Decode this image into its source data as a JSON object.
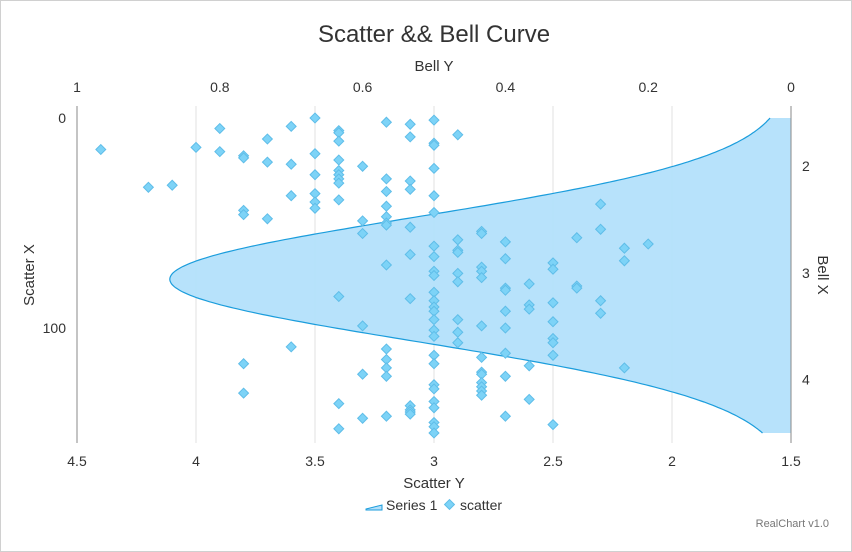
{
  "chart_data": {
    "type": "scatter",
    "title": "Scatter && Bell Curve",
    "x_axis": {
      "title": "Scatter Y",
      "range": [
        4.5,
        1.5
      ],
      "ticks": [
        "4.5",
        "4",
        "3.5",
        "3",
        "2.5",
        "2",
        "1.5"
      ],
      "tick_values": [
        4.5,
        4,
        3.5,
        3,
        2.5,
        2,
        1.5
      ]
    },
    "y_axis": {
      "title": "Scatter X",
      "range": [
        0,
        150
      ],
      "ticks": [
        "0",
        "100"
      ],
      "tick_values": [
        0,
        100
      ]
    },
    "x2_axis": {
      "title": "Bell Y",
      "range": [
        1,
        0
      ],
      "ticks": [
        "1",
        "0.8",
        "0.6",
        "0.4",
        "0.2",
        "0"
      ],
      "tick_values": [
        1,
        0.8,
        0.6,
        0.4,
        0.2,
        0
      ]
    },
    "y2_axis": {
      "title": "Bell X",
      "ticks": [
        "2",
        "3",
        "4"
      ],
      "tick_values": [
        2,
        3,
        4
      ],
      "range": [
        1.55,
        4.5
      ]
    },
    "grid": "vertical",
    "legend_position": "bottom",
    "series": [
      {
        "name": "Series 1",
        "type": "area",
        "color": "#1b9ddc",
        "fill": "#b3e0fb",
        "mean": 3.06,
        "sigma": 0.58,
        "peak": 0.87
      },
      {
        "name": "scatter",
        "type": "scatter",
        "color": "#7dd3f7",
        "stroke": "#5fbde8",
        "points": [
          [
            4.4,
            15
          ],
          [
            4.2,
            33
          ],
          [
            4.1,
            32
          ],
          [
            4,
            14
          ],
          [
            3.9,
            5
          ],
          [
            3.9,
            16
          ],
          [
            3.8,
            18
          ],
          [
            3.8,
            19
          ],
          [
            3.8,
            44
          ],
          [
            3.8,
            46
          ],
          [
            3.8,
            117
          ],
          [
            3.8,
            131
          ],
          [
            3.7,
            10
          ],
          [
            3.7,
            21
          ],
          [
            3.7,
            48
          ],
          [
            3.6,
            4
          ],
          [
            3.6,
            22
          ],
          [
            3.6,
            37
          ],
          [
            3.6,
            109
          ],
          [
            3.5,
            0
          ],
          [
            3.5,
            17
          ],
          [
            3.5,
            27
          ],
          [
            3.5,
            36
          ],
          [
            3.5,
            40
          ],
          [
            3.5,
            43
          ],
          [
            3.4,
            6
          ],
          [
            3.4,
            7
          ],
          [
            3.4,
            11
          ],
          [
            3.4,
            20
          ],
          [
            3.4,
            25
          ],
          [
            3.4,
            27
          ],
          [
            3.4,
            29
          ],
          [
            3.4,
            31
          ],
          [
            3.4,
            39
          ],
          [
            3.4,
            85
          ],
          [
            3.4,
            136
          ],
          [
            3.4,
            148
          ],
          [
            3.3,
            23
          ],
          [
            3.3,
            49
          ],
          [
            3.3,
            55
          ],
          [
            3.3,
            99
          ],
          [
            3.3,
            122
          ],
          [
            3.3,
            143
          ],
          [
            3.2,
            2
          ],
          [
            3.2,
            29
          ],
          [
            3.2,
            35
          ],
          [
            3.2,
            42
          ],
          [
            3.2,
            47
          ],
          [
            3.2,
            50
          ],
          [
            3.2,
            51
          ],
          [
            3.2,
            70
          ],
          [
            3.2,
            110
          ],
          [
            3.2,
            115
          ],
          [
            3.2,
            119
          ],
          [
            3.2,
            123
          ],
          [
            3.2,
            142
          ],
          [
            3.1,
            3
          ],
          [
            3.1,
            9
          ],
          [
            3.1,
            30
          ],
          [
            3.1,
            34
          ],
          [
            3.1,
            52
          ],
          [
            3.1,
            65
          ],
          [
            3.1,
            86
          ],
          [
            3.1,
            137
          ],
          [
            3.1,
            139
          ],
          [
            3.1,
            140
          ],
          [
            3.1,
            141
          ],
          [
            3,
            1
          ],
          [
            3,
            12
          ],
          [
            3,
            13
          ],
          [
            3,
            24
          ],
          [
            3,
            37
          ],
          [
            3,
            45
          ],
          [
            3,
            61
          ],
          [
            3,
            66
          ],
          [
            3,
            73
          ],
          [
            3,
            75
          ],
          [
            3,
            83
          ],
          [
            3,
            87
          ],
          [
            3,
            90
          ],
          [
            3,
            92
          ],
          [
            3,
            96
          ],
          [
            3,
            101
          ],
          [
            3,
            104
          ],
          [
            3,
            113
          ],
          [
            3,
            117
          ],
          [
            3,
            127
          ],
          [
            3,
            129
          ],
          [
            3,
            135
          ],
          [
            3,
            138
          ],
          [
            3,
            145
          ],
          [
            3,
            147
          ],
          [
            3,
            150
          ],
          [
            2.9,
            8
          ],
          [
            2.9,
            58
          ],
          [
            2.9,
            63
          ],
          [
            2.9,
            64
          ],
          [
            2.9,
            74
          ],
          [
            2.9,
            78
          ],
          [
            2.9,
            96
          ],
          [
            2.9,
            102
          ],
          [
            2.9,
            107
          ],
          [
            2.8,
            54
          ],
          [
            2.8,
            55
          ],
          [
            2.8,
            71
          ],
          [
            2.8,
            73
          ],
          [
            2.8,
            76
          ],
          [
            2.8,
            99
          ],
          [
            2.8,
            114
          ],
          [
            2.8,
            121
          ],
          [
            2.8,
            122
          ],
          [
            2.8,
            126
          ],
          [
            2.8,
            128
          ],
          [
            2.8,
            130
          ],
          [
            2.8,
            132
          ],
          [
            2.7,
            59
          ],
          [
            2.7,
            67
          ],
          [
            2.7,
            81
          ],
          [
            2.7,
            82
          ],
          [
            2.7,
            92
          ],
          [
            2.7,
            100
          ],
          [
            2.7,
            112
          ],
          [
            2.7,
            123
          ],
          [
            2.7,
            142
          ],
          [
            2.6,
            79
          ],
          [
            2.6,
            89
          ],
          [
            2.6,
            91
          ],
          [
            2.6,
            118
          ],
          [
            2.6,
            134
          ],
          [
            2.5,
            69
          ],
          [
            2.5,
            72
          ],
          [
            2.5,
            88
          ],
          [
            2.5,
            97
          ],
          [
            2.5,
            105
          ],
          [
            2.5,
            107
          ],
          [
            2.5,
            113
          ],
          [
            2.5,
            146
          ],
          [
            2.4,
            57
          ],
          [
            2.4,
            80
          ],
          [
            2.4,
            81
          ],
          [
            2.3,
            41
          ],
          [
            2.3,
            53
          ],
          [
            2.3,
            87
          ],
          [
            2.3,
            93
          ],
          [
            2.2,
            62
          ],
          [
            2.2,
            68
          ],
          [
            2.2,
            119
          ],
          [
            2.1,
            60
          ]
        ]
      }
    ]
  },
  "legend": {
    "series1_label": "Series 1",
    "scatter_label": "scatter"
  },
  "credit": "RealChart v1.0"
}
